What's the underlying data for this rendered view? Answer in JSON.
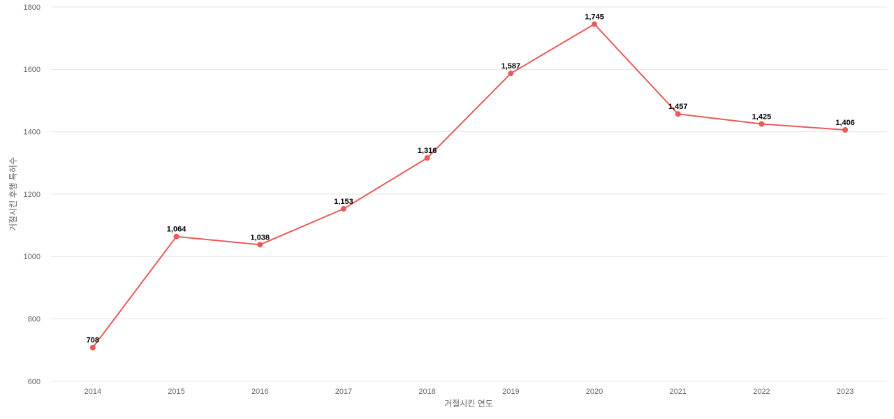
{
  "chart_data": {
    "type": "line",
    "x_label": "거절시킨 연도",
    "y_label": "거절시킨 후행 특허수",
    "categories": [
      "2014",
      "2015",
      "2016",
      "2017",
      "2018",
      "2019",
      "2020",
      "2021",
      "2022",
      "2023"
    ],
    "series": [
      {
        "name": "거절시킨 후행 특허수",
        "color": "#ea5a5a",
        "values": [
          708,
          1064,
          1038,
          1153,
          1316,
          1587,
          1745,
          1457,
          1425,
          1406
        ],
        "value_labels": [
          "708",
          "1,064",
          "1,038",
          "1,153",
          "1,316",
          "1,587",
          "1,745",
          "1,457",
          "1,425",
          "1,406"
        ]
      }
    ],
    "ylim": [
      600,
      1800
    ],
    "yticks": [
      600,
      800,
      1000,
      1200,
      1400,
      1600,
      1800
    ],
    "grid": true
  }
}
